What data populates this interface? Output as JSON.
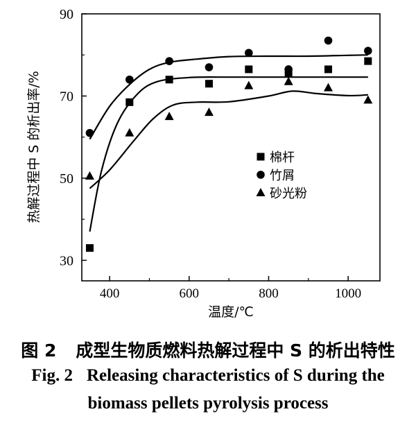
{
  "chart_data": {
    "type": "scatter",
    "xlabel": "温度/℃",
    "ylabel": "热解过程中 S 的析出率/%",
    "xlim": [
      330,
      1080
    ],
    "ylim": [
      25,
      90
    ],
    "xticks": [
      400,
      600,
      800,
      1000
    ],
    "yticks": [
      30,
      50,
      70,
      90
    ],
    "grid": false,
    "legend_position": "center-right",
    "series": [
      {
        "name": "棉杆",
        "marker": "square",
        "x": [
          350,
          450,
          550,
          650,
          750,
          850,
          950,
          1050
        ],
        "y": [
          33.0,
          68.5,
          74.0,
          73.0,
          76.5,
          75.5,
          76.5,
          78.5
        ],
        "fit_curve": [
          [
            350,
            37.0
          ],
          [
            380,
            52.0
          ],
          [
            420,
            63.5
          ],
          [
            470,
            70.5
          ],
          [
            520,
            73.5
          ],
          [
            600,
            74.5
          ],
          [
            700,
            74.6
          ],
          [
            800,
            74.6
          ],
          [
            900,
            74.6
          ],
          [
            1000,
            74.6
          ],
          [
            1050,
            74.6
          ]
        ]
      },
      {
        "name": "竹屑",
        "marker": "circle",
        "x": [
          350,
          450,
          550,
          650,
          750,
          850,
          950,
          1050
        ],
        "y": [
          61.0,
          74.0,
          78.5,
          77.0,
          80.5,
          76.5,
          83.5,
          81.0
        ],
        "fit_curve": [
          [
            350,
            59.5
          ],
          [
            400,
            67.5
          ],
          [
            450,
            72.8
          ],
          [
            500,
            76.5
          ],
          [
            550,
            78.2
          ],
          [
            620,
            79.0
          ],
          [
            700,
            79.6
          ],
          [
            800,
            79.7
          ],
          [
            900,
            79.7
          ],
          [
            1000,
            79.9
          ],
          [
            1050,
            80.0
          ]
        ]
      },
      {
        "name": "砂光粉",
        "marker": "triangle",
        "x": [
          350,
          450,
          550,
          650,
          750,
          850,
          950,
          1050
        ],
        "y": [
          50.5,
          61.0,
          65.0,
          66.0,
          72.5,
          73.5,
          72.0,
          69.0
        ],
        "fit_curve": [
          [
            350,
            47.5
          ],
          [
            400,
            52.0
          ],
          [
            460,
            59.0
          ],
          [
            510,
            64.5
          ],
          [
            560,
            67.8
          ],
          [
            620,
            68.5
          ],
          [
            700,
            68.6
          ],
          [
            800,
            70.0
          ],
          [
            860,
            71.2
          ],
          [
            920,
            70.6
          ],
          [
            1000,
            70.1
          ],
          [
            1050,
            70.3
          ]
        ]
      }
    ]
  },
  "caption": {
    "cn_num": "图 2",
    "cn_text": "成型生物质燃料热解过程中 S 的析出特性",
    "en_num": "Fig. 2",
    "en_line1": "Releasing characteristics of S during the",
    "en_line2": "biomass pellets pyrolysis process"
  }
}
